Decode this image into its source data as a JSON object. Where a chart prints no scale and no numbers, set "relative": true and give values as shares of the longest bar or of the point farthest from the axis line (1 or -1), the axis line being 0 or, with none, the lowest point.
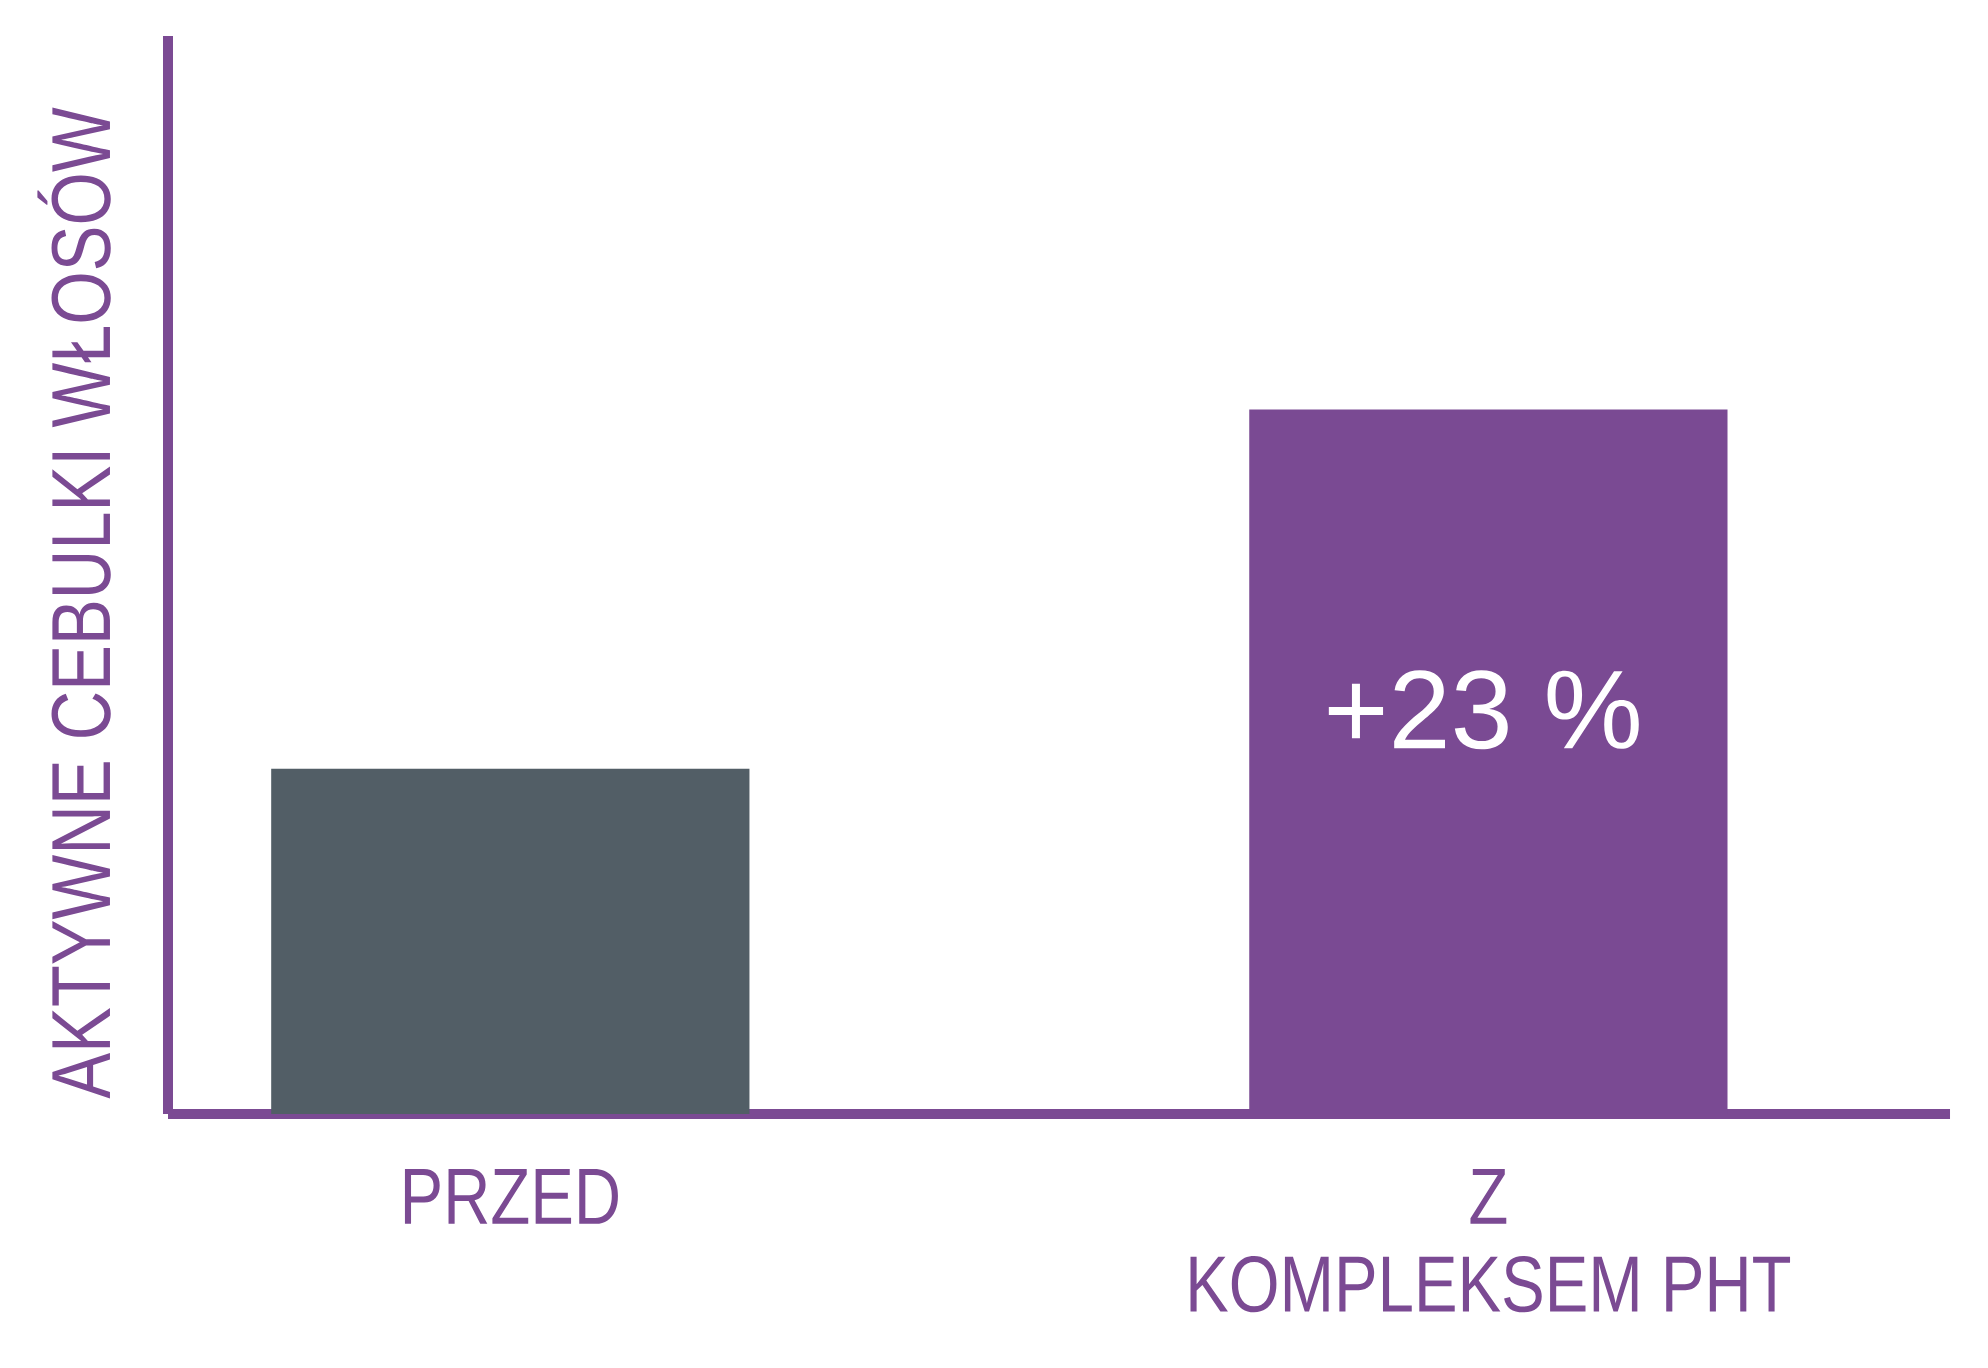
{
  "chart_data": {
    "type": "bar",
    "ylabel": "AKTYWNE CEBULKI WŁOSÓW",
    "categories": [
      "PRZED",
      "Z\nKOMPLEKSEM PHT"
    ],
    "values": [
      0.49,
      1
    ],
    "colors": [
      "#525e66",
      "#7a4a93"
    ],
    "relative": true,
    "annotations": [
      "+23 %"
    ]
  }
}
